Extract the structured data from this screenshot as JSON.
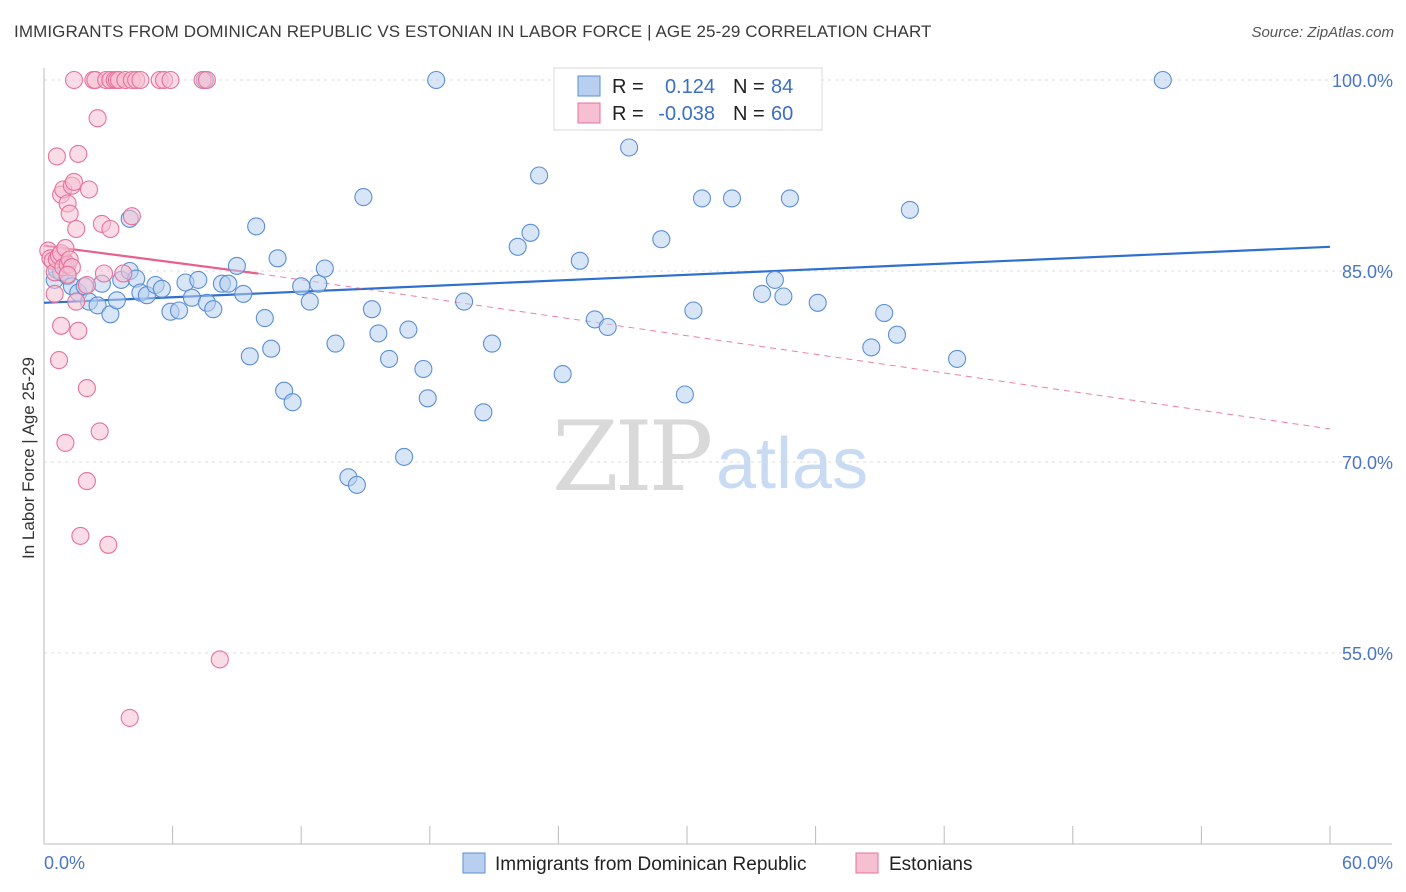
{
  "title": "IMMIGRANTS FROM DOMINICAN REPUBLIC VS ESTONIAN IN LABOR FORCE | AGE 25-29 CORRELATION CHART",
  "source": "Source: ZipAtlas.com",
  "watermark": {
    "zip": "ZIP",
    "atlas": "atlas"
  },
  "colors": {
    "blue": "#5b8fd6",
    "blue_fill": "#b8cff0",
    "blue_line": "#2f6fce",
    "pink": "#e8719a",
    "pink_fill": "#f6c0d2",
    "pink_line": "#e8608c",
    "tick_text": "#4a76c4",
    "grid": "#dcdcdc"
  },
  "legend": {
    "rows": [
      {
        "r_label": "R =",
        "r_value": "0.124",
        "n_label": "N =",
        "n_value": "84",
        "series": "blue"
      },
      {
        "r_label": "R =",
        "r_value": "-0.038",
        "n_label": "N =",
        "n_value": "60",
        "series": "pink"
      }
    ]
  },
  "bottom_legend": [
    "Immigrants from Dominican Republic",
    "Estonians"
  ],
  "chart_data": {
    "type": "scatter",
    "title": "IMMIGRANTS FROM DOMINICAN REPUBLIC VS ESTONIAN IN LABOR FORCE | AGE 25-29 CORRELATION CHART",
    "xlabel": "",
    "ylabel": "In Labor Force | Age 25-29",
    "xlim": [
      0,
      60
    ],
    "ylim": [
      40,
      100
    ],
    "x_tick_labels": [
      "0.0%",
      "60.0%"
    ],
    "y_ticks": [
      55,
      70,
      85,
      100
    ],
    "y_tick_labels": [
      "55.0%",
      "70.0%",
      "85.0%",
      "100.0%"
    ],
    "series": [
      {
        "name": "Immigrants from Dominican Republic",
        "color": "blue",
        "R": 0.124,
        "N": 84,
        "trend": {
          "x": [
            0,
            60
          ],
          "y": [
            82.5,
            86.9
          ],
          "style": "solid"
        },
        "points": [
          [
            0.5,
            84.3
          ],
          [
            0.6,
            85.1
          ],
          [
            0.8,
            84.9
          ],
          [
            1.0,
            85.7
          ],
          [
            1.1,
            84.6
          ],
          [
            1.3,
            83.8
          ],
          [
            1.6,
            83.3
          ],
          [
            1.9,
            83.8
          ],
          [
            2.1,
            82.6
          ],
          [
            2.5,
            82.3
          ],
          [
            2.7,
            84.0
          ],
          [
            3.1,
            81.6
          ],
          [
            3.4,
            82.7
          ],
          [
            3.6,
            84.3
          ],
          [
            4.0,
            85.0
          ],
          [
            4.3,
            84.4
          ],
          [
            4.5,
            83.3
          ],
          [
            4.8,
            83.1
          ],
          [
            5.2,
            83.9
          ],
          [
            5.5,
            83.6
          ],
          [
            5.9,
            81.8
          ],
          [
            6.3,
            81.9
          ],
          [
            6.6,
            84.1
          ],
          [
            6.9,
            82.9
          ],
          [
            7.2,
            84.3
          ],
          [
            7.6,
            82.5
          ],
          [
            7.9,
            82.0
          ],
          [
            8.3,
            84.0
          ],
          [
            8.6,
            84.0
          ],
          [
            9.0,
            85.4
          ],
          [
            9.3,
            83.2
          ],
          [
            9.6,
            78.3
          ],
          [
            9.9,
            88.5
          ],
          [
            10.3,
            81.3
          ],
          [
            10.6,
            78.9
          ],
          [
            10.9,
            86.0
          ],
          [
            11.2,
            75.6
          ],
          [
            11.6,
            74.7
          ],
          [
            12.0,
            83.8
          ],
          [
            12.4,
            82.6
          ],
          [
            12.8,
            84.0
          ],
          [
            13.1,
            85.2
          ],
          [
            13.6,
            79.3
          ],
          [
            14.2,
            68.8
          ],
          [
            14.6,
            68.2
          ],
          [
            14.9,
            90.8
          ],
          [
            15.3,
            82.0
          ],
          [
            15.6,
            80.1
          ],
          [
            16.1,
            78.1
          ],
          [
            16.8,
            70.4
          ],
          [
            17.0,
            80.4
          ],
          [
            17.7,
            77.3
          ],
          [
            17.9,
            75.0
          ],
          [
            18.3,
            100.0
          ],
          [
            19.6,
            82.6
          ],
          [
            20.5,
            73.9
          ],
          [
            20.9,
            79.3
          ],
          [
            22.1,
            86.9
          ],
          [
            22.7,
            88.0
          ],
          [
            23.1,
            92.5
          ],
          [
            24.2,
            76.9
          ],
          [
            25.0,
            85.8
          ],
          [
            25.7,
            81.2
          ],
          [
            26.3,
            80.6
          ],
          [
            27.3,
            94.7
          ],
          [
            28.8,
            87.5
          ],
          [
            29.9,
            75.3
          ],
          [
            30.3,
            81.9
          ],
          [
            30.7,
            90.7
          ],
          [
            32.1,
            90.7
          ],
          [
            33.5,
            83.2
          ],
          [
            34.1,
            84.3
          ],
          [
            34.5,
            83.0
          ],
          [
            34.8,
            90.7
          ],
          [
            36.1,
            82.5
          ],
          [
            38.6,
            79.0
          ],
          [
            39.2,
            81.7
          ],
          [
            39.8,
            80.0
          ],
          [
            40.4,
            89.8
          ],
          [
            42.6,
            78.1
          ],
          [
            52.2,
            100.0
          ],
          [
            7.5,
            100.0
          ],
          [
            4.0,
            89.1
          ],
          [
            0.9,
            85.6
          ]
        ]
      },
      {
        "name": "Estonians",
        "color": "pink",
        "R": -0.038,
        "N": 60,
        "trend": {
          "x": [
            0,
            10
          ],
          "y": [
            87.0,
            84.8
          ],
          "style": "solid",
          "extended": {
            "x": [
              10,
              60
            ],
            "y": [
              84.8,
              72.6
            ],
            "style": "dashed"
          }
        },
        "points": [
          [
            0.2,
            86.6
          ],
          [
            0.3,
            86.0
          ],
          [
            0.4,
            85.8
          ],
          [
            0.5,
            84.9
          ],
          [
            0.5,
            83.2
          ],
          [
            0.6,
            85.9
          ],
          [
            0.7,
            86.2
          ],
          [
            0.8,
            86.4
          ],
          [
            0.9,
            85.3
          ],
          [
            1.0,
            86.8
          ],
          [
            1.1,
            85.5
          ],
          [
            1.2,
            85.9
          ],
          [
            0.6,
            94.0
          ],
          [
            0.7,
            78.0
          ],
          [
            0.8,
            80.7
          ],
          [
            0.8,
            91.0
          ],
          [
            0.9,
            91.4
          ],
          [
            1.0,
            71.5
          ],
          [
            1.1,
            90.3
          ],
          [
            1.2,
            89.5
          ],
          [
            1.3,
            91.7
          ],
          [
            1.4,
            92.0
          ],
          [
            1.5,
            82.6
          ],
          [
            1.5,
            88.3
          ],
          [
            1.6,
            80.3
          ],
          [
            1.6,
            94.2
          ],
          [
            1.7,
            64.2
          ],
          [
            2.0,
            68.5
          ],
          [
            2.0,
            75.8
          ],
          [
            2.1,
            91.4
          ],
          [
            2.3,
            100.0
          ],
          [
            2.4,
            100.0
          ],
          [
            2.5,
            97.0
          ],
          [
            2.6,
            72.4
          ],
          [
            2.7,
            88.7
          ],
          [
            2.8,
            84.8
          ],
          [
            2.9,
            100.0
          ],
          [
            3.0,
            63.5
          ],
          [
            3.1,
            100.0
          ],
          [
            3.1,
            88.3
          ],
          [
            3.3,
            100.0
          ],
          [
            3.4,
            100.0
          ],
          [
            3.5,
            100.0
          ],
          [
            3.7,
            84.8
          ],
          [
            3.8,
            100.0
          ],
          [
            4.0,
            49.9
          ],
          [
            4.1,
            100.0
          ],
          [
            4.3,
            100.0
          ],
          [
            4.5,
            100.0
          ],
          [
            5.4,
            100.0
          ],
          [
            5.6,
            100.0
          ],
          [
            5.9,
            100.0
          ],
          [
            7.4,
            100.0
          ],
          [
            7.6,
            100.0
          ],
          [
            8.2,
            54.5
          ],
          [
            1.3,
            85.3
          ],
          [
            1.4,
            100.0
          ],
          [
            4.1,
            89.3
          ],
          [
            2.0,
            83.9
          ],
          [
            1.1,
            84.7
          ]
        ]
      }
    ]
  }
}
